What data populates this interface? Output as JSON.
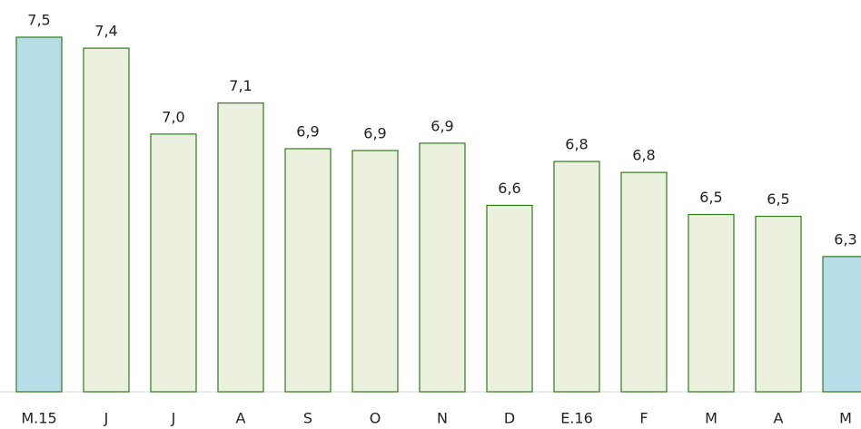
{
  "chart_data": {
    "type": "bar",
    "categories": [
      "M.15",
      "J",
      "J",
      "A",
      "S",
      "O",
      "N",
      "D",
      "E.16",
      "F",
      "M",
      "A",
      "M"
    ],
    "values": [
      7.5,
      7.44,
      6.97,
      7.14,
      6.89,
      6.88,
      6.92,
      6.58,
      6.82,
      6.76,
      6.53,
      6.52,
      6.3
    ],
    "value_labels": [
      "7,5",
      "7,4",
      "7,0",
      "7,1",
      "6,9",
      "6,9",
      "6,9",
      "6,6",
      "6,8",
      "6,8",
      "6,5",
      "6,5",
      "6,3"
    ],
    "colors": [
      "#b7dde8",
      "#ebf1de",
      "#ebf1de",
      "#ebf1de",
      "#ebf1de",
      "#ebf1de",
      "#ebf1de",
      "#ebf1de",
      "#ebf1de",
      "#ebf1de",
      "#ebf1de",
      "#ebf1de",
      "#b7dde8"
    ],
    "edge_color": "#2e7d17",
    "ylim": [
      5.56,
      7.5
    ]
  }
}
